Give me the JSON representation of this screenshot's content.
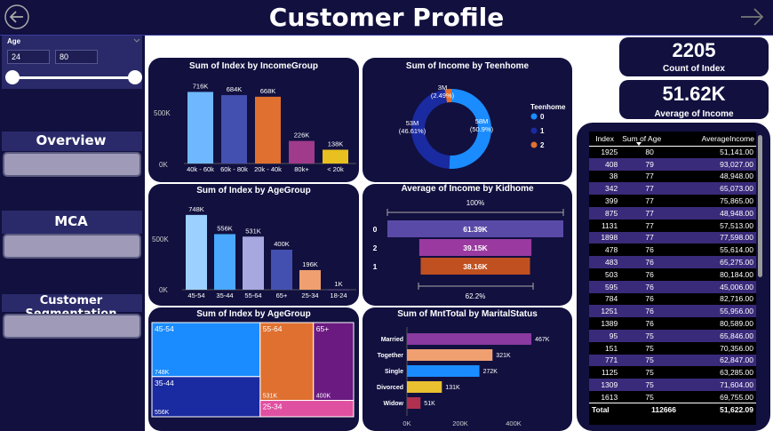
{
  "title": "Customer Profile",
  "nav": {
    "back_icon": "arrow-left-icon",
    "forward_icon": "arrow-right-icon"
  },
  "slicer": {
    "label": "Age",
    "min": "24",
    "max": "80",
    "range_fraction": [
      0,
      1
    ]
  },
  "sidebar": {
    "items": [
      {
        "label": "Overview"
      },
      {
        "label": "MCA"
      },
      {
        "label": "Customer Segmentation"
      }
    ]
  },
  "cards": {
    "count_value": "2205",
    "count_label": "Count of Index",
    "avg_value": "51.62K",
    "avg_label": "Average of Income"
  },
  "charts": {
    "income_group": {
      "title": "Sum of Index by IncomeGroup",
      "yticks": [
        "500K",
        "0K"
      ]
    },
    "teenhome": {
      "title": "Sum of Income by Teenhome",
      "legend_title": "Teenhome"
    },
    "age_group": {
      "title": "Sum of Index by AgeGroup",
      "yticks": [
        "500K",
        "0K"
      ]
    },
    "kidhome": {
      "title": "Average of Income by Kidhome",
      "top": "100%",
      "bottom": "62.2%"
    },
    "treemap": {
      "title": "Sum of Index by AgeGroup"
    },
    "marital": {
      "title": "Sum of MntTotal by MaritalStatus",
      "xticks": [
        "0K",
        "200K",
        "400K"
      ]
    }
  },
  "chart_data": [
    {
      "type": "bar",
      "title": "Sum of Index by IncomeGroup",
      "categories": [
        "40k - 60k",
        "60k - 80k",
        "20k - 40k",
        "80k+",
        "< 20k"
      ],
      "values": [
        716,
        684,
        668,
        226,
        138
      ],
      "labels": [
        "716K",
        "684K",
        "668K",
        "226K",
        "138K"
      ],
      "colors": [
        "#6fb8ff",
        "#4450b0",
        "#e07030",
        "#a03a8a",
        "#e8c020"
      ],
      "ylim": [
        0,
        800
      ]
    },
    {
      "type": "pie",
      "title": "Sum of Income by Teenhome",
      "categories": [
        "0",
        "1",
        "2"
      ],
      "values": [
        58,
        53,
        3
      ],
      "labels": [
        "58M\n(50.9%)",
        "53M\n(46.61%)",
        "3M\n(2.49%)"
      ],
      "colors": [
        "#1a8cff",
        "#1a2aa0",
        "#e07030"
      ]
    },
    {
      "type": "bar",
      "title": "Sum of Index by AgeGroup",
      "categories": [
        "45-54",
        "35-44",
        "55-64",
        "65+",
        "25-34",
        "18-24"
      ],
      "values": [
        748,
        556,
        531,
        400,
        196,
        1
      ],
      "labels": [
        "748K",
        "556K",
        "531K",
        "400K",
        "196K",
        "1K"
      ],
      "colors": [
        "#9cd0ff",
        "#4aa8ff",
        "#a8a8e0",
        "#4450b0",
        "#f0a070",
        "#9060c0"
      ],
      "ylim": [
        0,
        800
      ]
    },
    {
      "type": "bar",
      "title": "Average of Income by Kidhome",
      "categories": [
        "0",
        "2",
        "1"
      ],
      "values": [
        61.39,
        39.15,
        38.16
      ],
      "labels": [
        "61.39K",
        "39.15K",
        "38.16K"
      ],
      "colors": [
        "#5a4aa8",
        "#9a3aa0",
        "#c05020"
      ]
    },
    {
      "type": "heatmap",
      "title": "Sum of Index by AgeGroup",
      "categories": [
        "45-54",
        "55-64",
        "65+",
        "35-44",
        "25-34"
      ],
      "values": [
        748,
        531,
        400,
        556,
        196
      ],
      "labels": [
        "748K",
        "531K",
        "400K",
        "556K",
        ""
      ],
      "colors": [
        "#1a8cff",
        "#e07030",
        "#6a1a80",
        "#1a2aa0",
        "#e050a0"
      ]
    },
    {
      "type": "bar",
      "title": "Sum of MntTotal by MaritalStatus",
      "categories": [
        "Married",
        "Together",
        "Single",
        "Divorced",
        "Widow"
      ],
      "values": [
        467,
        321,
        272,
        131,
        51
      ],
      "labels": [
        "467K",
        "321K",
        "272K",
        "131K",
        "51K"
      ],
      "colors": [
        "#8a3aa0",
        "#f0a070",
        "#1a8cff",
        "#e8c030",
        "#b03050"
      ],
      "xlim": [
        0,
        500
      ]
    }
  ],
  "table": {
    "headers": [
      "Index",
      "Sum of Age",
      "AverageIncome"
    ],
    "rows": [
      [
        "1925",
        "80",
        "51,141.00"
      ],
      [
        "408",
        "79",
        "93,027.00"
      ],
      [
        "38",
        "77",
        "48,948.00"
      ],
      [
        "342",
        "77",
        "65,073.00"
      ],
      [
        "399",
        "77",
        "75,865.00"
      ],
      [
        "875",
        "77",
        "48,948.00"
      ],
      [
        "1131",
        "77",
        "57,513.00"
      ],
      [
        "1898",
        "77",
        "77,598.00"
      ],
      [
        "478",
        "76",
        "55,614.00"
      ],
      [
        "483",
        "76",
        "65,275.00"
      ],
      [
        "503",
        "76",
        "80,184.00"
      ],
      [
        "595",
        "76",
        "45,006.00"
      ],
      [
        "784",
        "76",
        "82,716.00"
      ],
      [
        "1251",
        "76",
        "55,956.00"
      ],
      [
        "1389",
        "76",
        "80,589.00"
      ],
      [
        "95",
        "75",
        "65,846.00"
      ],
      [
        "151",
        "75",
        "70,356.00"
      ],
      [
        "771",
        "75",
        "62,847.00"
      ],
      [
        "1125",
        "75",
        "63,285.00"
      ],
      [
        "1309",
        "75",
        "71,604.00"
      ],
      [
        "1613",
        "75",
        "69,755.00"
      ]
    ],
    "total": [
      "Total",
      "112666",
      "51,622.09"
    ]
  }
}
